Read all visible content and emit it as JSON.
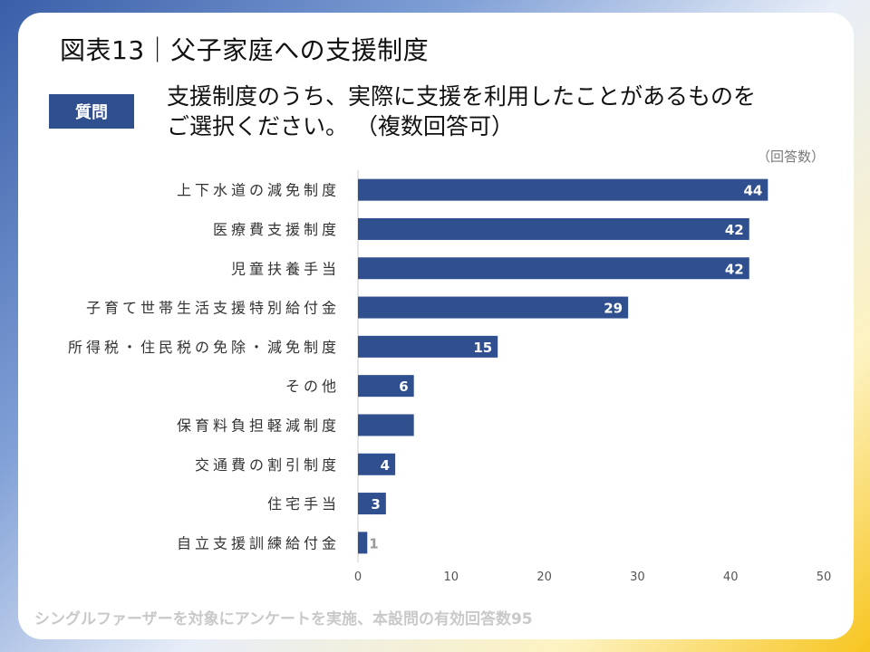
{
  "title": "図表13｜父子家庭への支援制度",
  "question": {
    "badge": "質問",
    "line1": "支援制度のうち、実際に支援を利用したことがあるものを",
    "line2": "ご選択ください。 （複数回答可）"
  },
  "unit_note": "（回答数）",
  "footnote": "シングルファーザーを対象にアンケートを実施、本設問の有効回答数95",
  "colors": {
    "bar": "#2f4f8f",
    "inner_label": "#ffffff",
    "outer_label": "#9a9a9a",
    "axis": "#cccccc"
  },
  "chart_data": {
    "type": "bar",
    "orientation": "horizontal",
    "categories": [
      "上下水道の減免制度",
      "医療費支援制度",
      "児童扶養手当",
      "子育て世帯生活支援特別給付金",
      "所得税・住民税の免除・減免制度",
      "その他",
      "保育料負担軽減制度",
      "交通費の割引制度",
      "住宅手当",
      "自立支援訓練給付金"
    ],
    "values": [
      44,
      42,
      42,
      29,
      15,
      6,
      6,
      4,
      3,
      1
    ],
    "data_labels": [
      "44",
      "42",
      "42",
      "29",
      "15",
      "6",
      "",
      "4",
      "3",
      "1"
    ],
    "xlim": [
      0,
      50
    ],
    "xticks": [
      "0",
      "10",
      "20",
      "30",
      "40",
      "50"
    ],
    "title": "図表13｜父子家庭への支援制度",
    "xlabel": "",
    "ylabel": ""
  }
}
